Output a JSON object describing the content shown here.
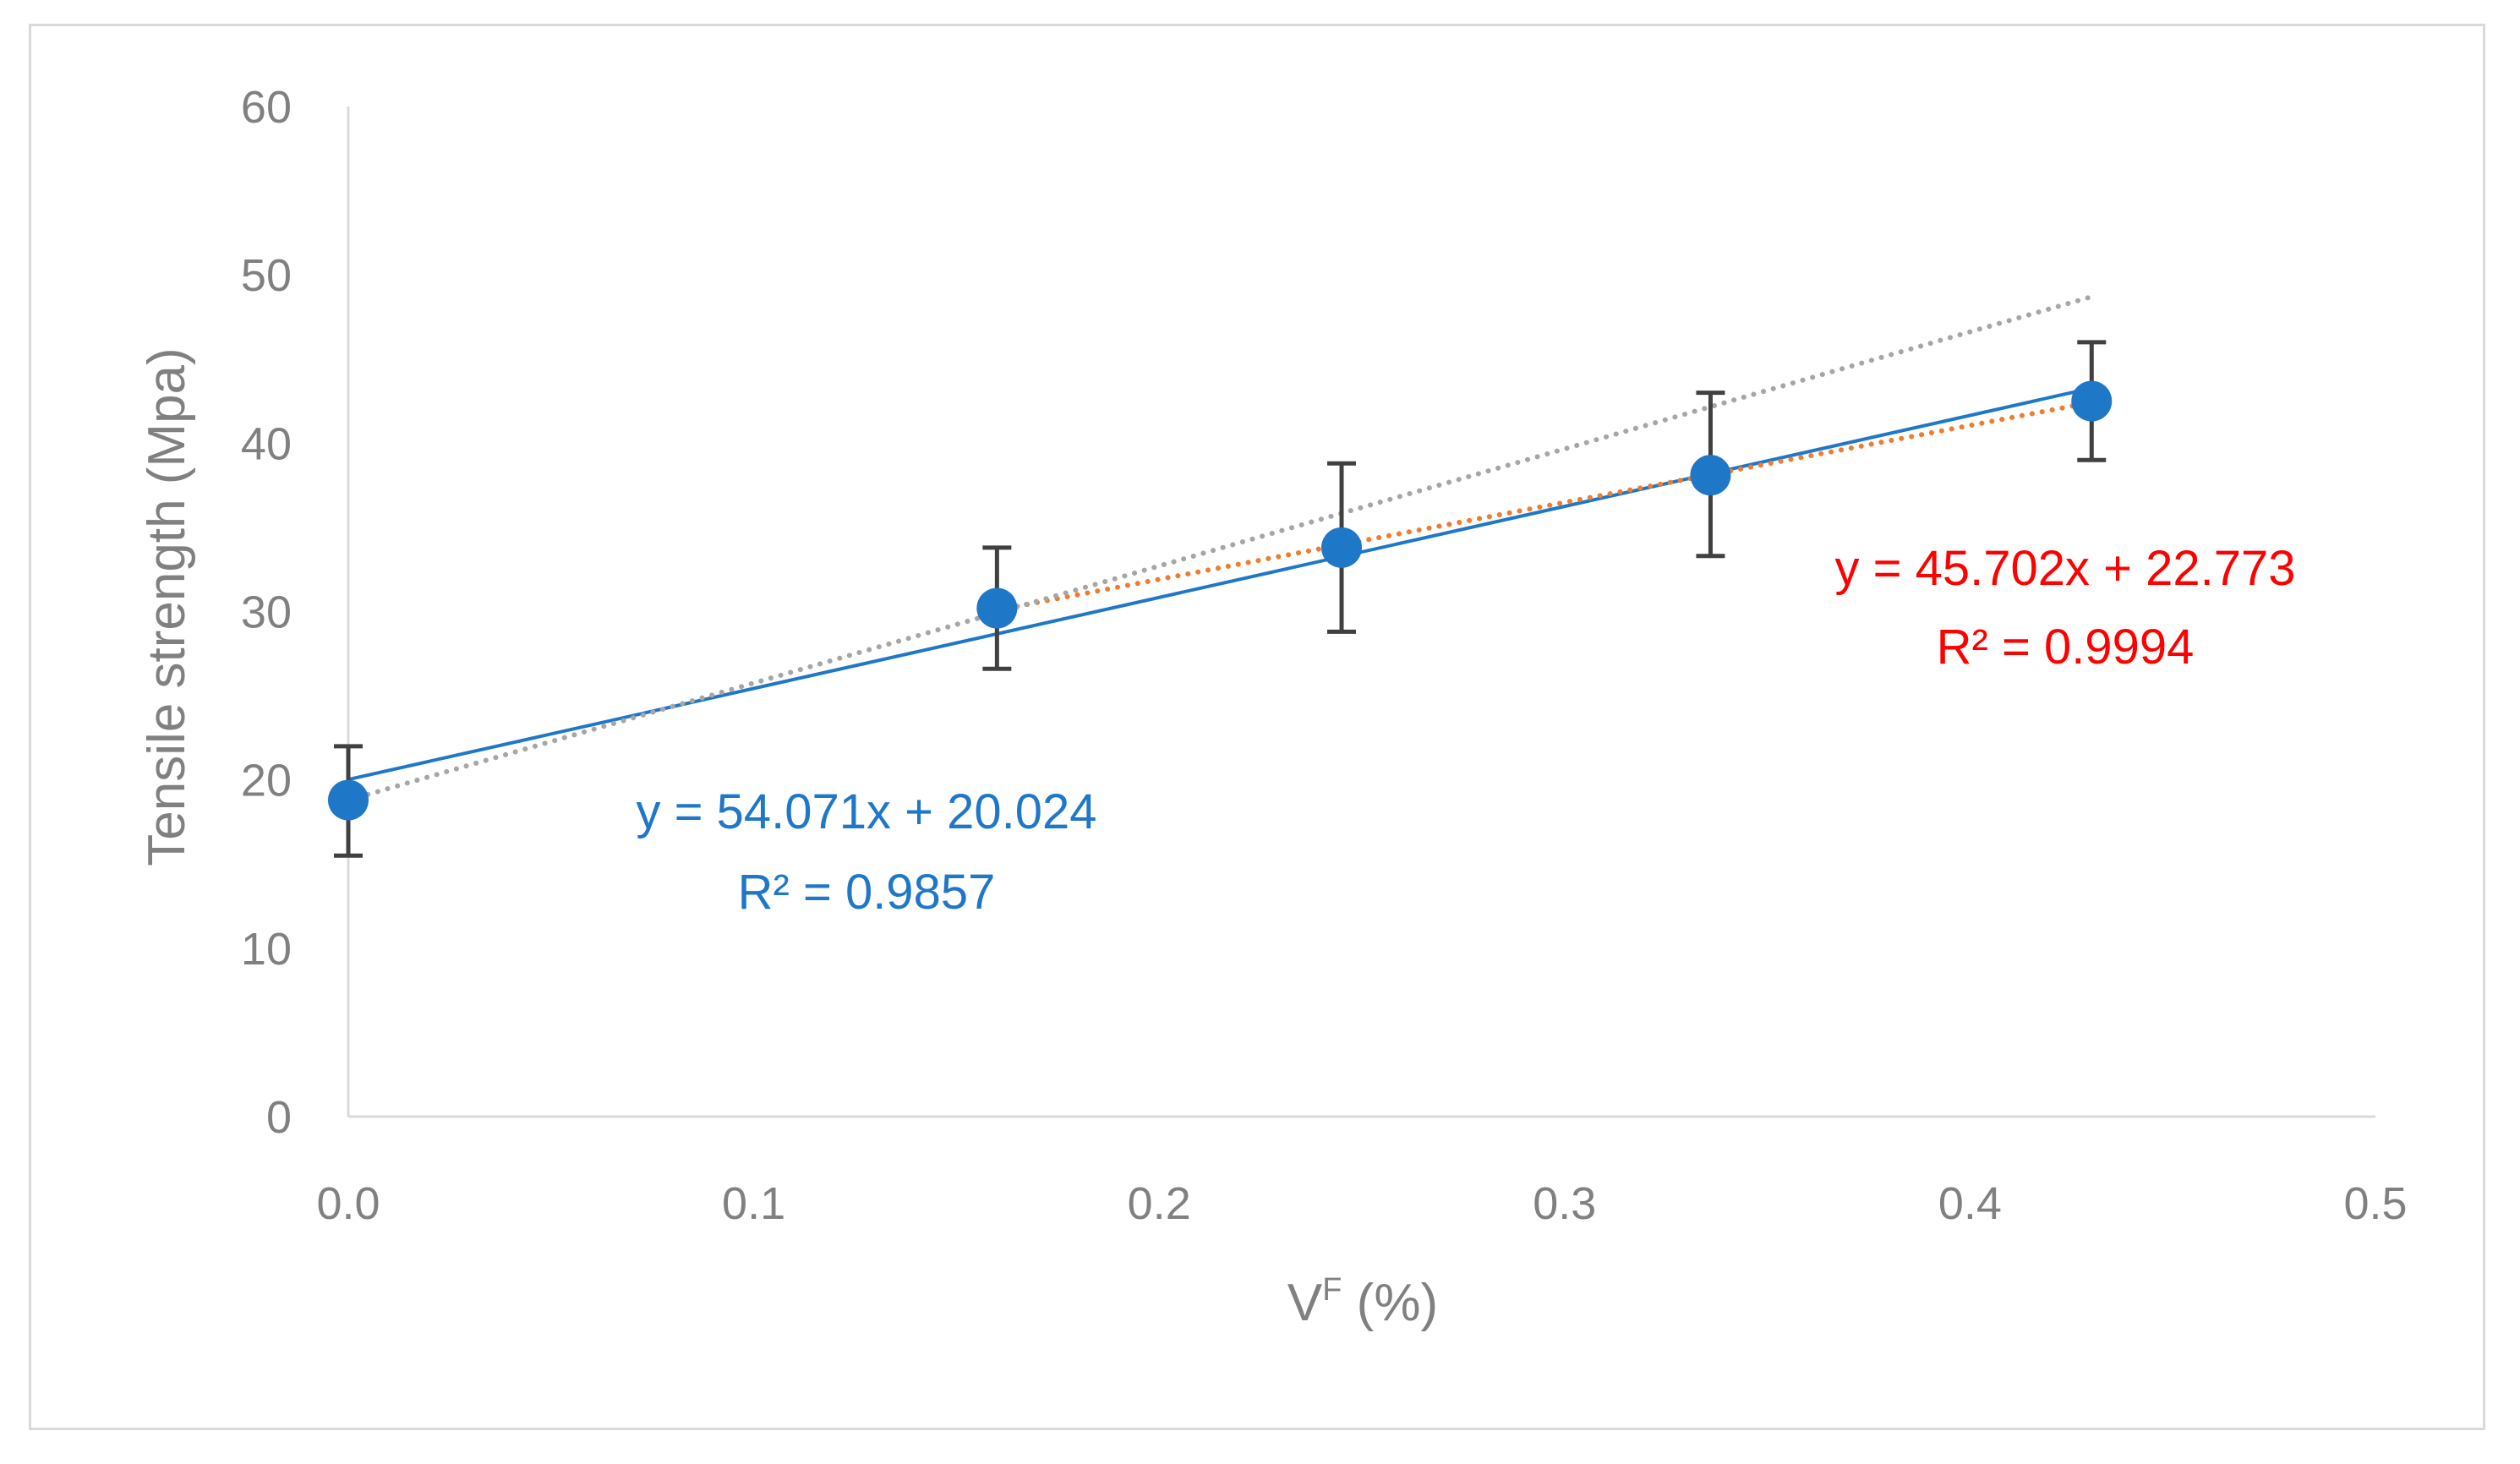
{
  "chart_data": {
    "type": "scatter",
    "title": "",
    "xlabel_main": "V",
    "xlabel_sup": "F",
    "xlabel_rest": " (%)",
    "ylabel": "Tensile strength (Mpa)",
    "xlim": [
      0,
      0.5
    ],
    "ylim": [
      0,
      60
    ],
    "x_ticks": [
      0,
      0.1,
      0.2,
      0.3,
      0.4,
      0.5
    ],
    "x_tick_labels": [
      "0.0",
      "0.1",
      "0.2",
      "0.3",
      "0.4",
      "0.5"
    ],
    "y_ticks": [
      0,
      10,
      20,
      30,
      40,
      50,
      60
    ],
    "y_tick_labels": [
      "0",
      "10",
      "20",
      "30",
      "40",
      "50",
      "60"
    ],
    "grid": false,
    "series": [
      {
        "name": "Tensile strength",
        "color": "#1f77c8",
        "x": [
          0.0,
          0.16,
          0.245,
          0.336,
          0.43
        ],
        "y": [
          18.8,
          30.2,
          33.8,
          38.1,
          42.5
        ],
        "err_upper": [
          22.0,
          33.8,
          38.8,
          43.0,
          46.0
        ],
        "err_lower": [
          15.5,
          26.6,
          28.8,
          33.3,
          39.0
        ]
      }
    ],
    "trendlines": [
      {
        "name": "linear-fit-all",
        "style": "solid",
        "color": "#1f77c8",
        "slope": 54.071,
        "intercept": 20.024,
        "x_range": [
          0,
          0.43
        ]
      },
      {
        "name": "linear-fit-upper",
        "style": "dotted",
        "color": "#ed7d31",
        "slope": 45.702,
        "intercept": 22.773,
        "x_range": [
          0.16,
          0.43
        ]
      },
      {
        "name": "gray-reference",
        "style": "dotted",
        "color": "#a6a6a6",
        "x_points": [
          0,
          0.43
        ],
        "y_points": [
          18.8,
          48.7
        ]
      }
    ],
    "error_bar_color": "#404040",
    "annotations": [
      {
        "line1": "y = 54.071x + 20.024",
        "line2": "R² = 0.9857",
        "color": "#1f77c8"
      },
      {
        "line1": "y = 45.702x + 22.773",
        "line2": "R² = 0.9994",
        "color": "#ff0000"
      }
    ],
    "axis_color": "#d9d9d9"
  }
}
